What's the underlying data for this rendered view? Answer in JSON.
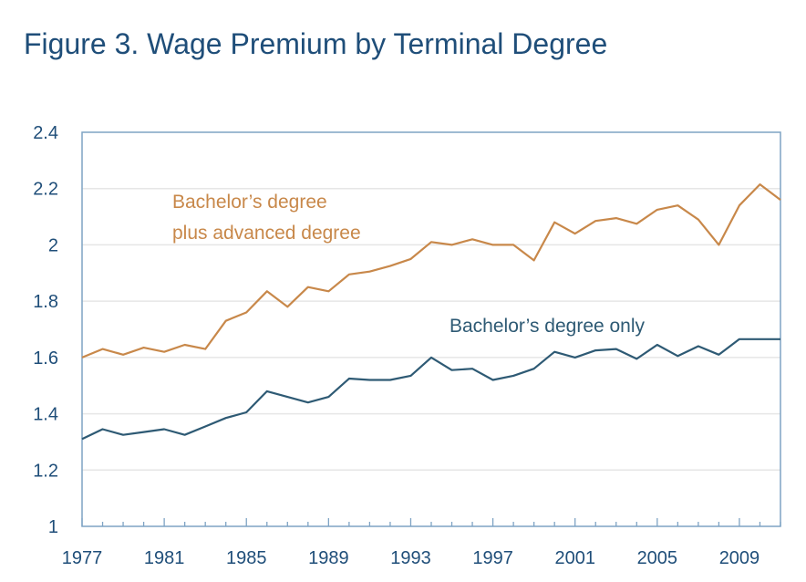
{
  "chart_data": {
    "type": "line",
    "title": "Figure 3. Wage Premium by Terminal Degree",
    "xlabel": "",
    "ylabel": "",
    "xlim": [
      1977,
      2011
    ],
    "ylim": [
      1,
      2.4
    ],
    "grid": true,
    "x_ticks": [
      1977,
      1981,
      1985,
      1989,
      1993,
      1997,
      2001,
      2005,
      2009
    ],
    "x_tick_labels": [
      "1977",
      "1981",
      "1985",
      "1989",
      "1993",
      "1997",
      "2001",
      "2005",
      "2009"
    ],
    "y_ticks": [
      1,
      1.2,
      1.4,
      1.6,
      1.8,
      2,
      2.2,
      2.4
    ],
    "y_tick_labels": [
      "1",
      "1.2",
      "1.4",
      "1.6",
      "1.8",
      "2",
      "2.2",
      "2.4"
    ],
    "x": [
      1977,
      1978,
      1979,
      1980,
      1981,
      1982,
      1983,
      1984,
      1985,
      1986,
      1987,
      1988,
      1989,
      1990,
      1991,
      1992,
      1993,
      1994,
      1995,
      1996,
      1997,
      1998,
      1999,
      2000,
      2001,
      2002,
      2003,
      2004,
      2005,
      2006,
      2007,
      2008,
      2009,
      2010,
      2011
    ],
    "series": [
      {
        "label_lines": [
          "Bachelor’s degree",
          "plus advanced degree"
        ],
        "color": "#c8884a",
        "values": [
          1.6,
          1.63,
          1.61,
          1.635,
          1.62,
          1.645,
          1.63,
          1.73,
          1.76,
          1.835,
          1.78,
          1.85,
          1.835,
          1.895,
          1.905,
          1.925,
          1.95,
          2.01,
          2.0,
          2.02,
          2.0,
          2.0,
          1.945,
          2.08,
          2.04,
          2.085,
          2.095,
          2.075,
          2.125,
          2.14,
          2.09,
          2.0,
          2.14,
          2.215,
          2.16
        ]
      },
      {
        "label_lines": [
          "Bachelor’s degree only"
        ],
        "color": "#2e5a74",
        "values": [
          1.31,
          1.345,
          1.325,
          1.335,
          1.345,
          1.325,
          1.355,
          1.385,
          1.405,
          1.48,
          1.46,
          1.44,
          1.46,
          1.525,
          1.52,
          1.52,
          1.535,
          1.6,
          1.555,
          1.56,
          1.52,
          1.535,
          1.56,
          1.62,
          1.6,
          1.625,
          1.63,
          1.595,
          1.645,
          1.605,
          1.64,
          1.61,
          1.665,
          1.665,
          1.665
        ]
      }
    ],
    "colors": {
      "title": "#1f4e79",
      "axis": "#7ea3c4",
      "grid": "#e6e6e6",
      "tick_text": "#1f4e79"
    }
  }
}
